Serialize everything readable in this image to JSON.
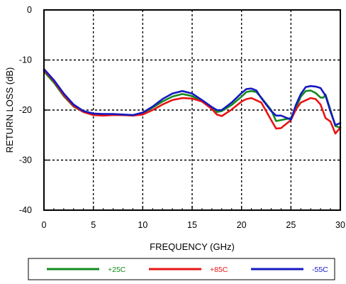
{
  "chart_data": {
    "type": "line",
    "title": "",
    "xlabel": "FREQUENCY (GHz)",
    "ylabel": "RETURN LOSS (dB)",
    "xlim": [
      0,
      30
    ],
    "ylim": [
      -40,
      0
    ],
    "xticks": [
      "0",
      "5",
      "10",
      "15",
      "20",
      "25",
      "30"
    ],
    "yticks": [
      "0",
      "-10",
      "-20",
      "-30",
      "-40"
    ],
    "grid": true,
    "legend_position": "bottom",
    "series": [
      {
        "name": "+25C",
        "color": "#138a1e",
        "x": [
          0,
          1,
          2,
          3,
          4,
          5,
          6,
          7,
          8,
          9,
          10,
          11,
          12,
          13,
          14,
          15,
          16,
          17,
          17.5,
          18,
          19,
          20,
          20.5,
          21,
          21.5,
          22,
          23,
          23.5,
          24,
          25,
          25.5,
          26,
          26.5,
          27,
          27.5,
          28,
          28.3,
          28.5,
          29,
          29.5,
          30
        ],
        "y": [
          -12.3,
          -14.5,
          -17.2,
          -19.3,
          -20.4,
          -20.9,
          -21.0,
          -20.9,
          -21.0,
          -21.0,
          -20.6,
          -19.5,
          -18.3,
          -17.3,
          -16.8,
          -17.2,
          -18.3,
          -19.7,
          -20.4,
          -20.2,
          -19.0,
          -17.3,
          -16.4,
          -16.2,
          -16.4,
          -17.5,
          -20.0,
          -22.2,
          -22.0,
          -21.6,
          -19.6,
          -17.3,
          -16.2,
          -16.1,
          -16.6,
          -17.5,
          -17.5,
          -16.9,
          -20.0,
          -23.2,
          -23.5
        ]
      },
      {
        "name": "+85C",
        "color": "#e81414",
        "x": [
          0,
          1,
          2,
          3,
          4,
          5,
          6,
          7,
          8,
          9,
          10,
          11,
          12,
          13,
          14,
          15,
          16,
          17,
          17.5,
          18,
          19,
          20,
          20.5,
          21,
          22,
          23,
          23.5,
          24,
          25,
          25.5,
          26,
          27,
          27.5,
          28,
          28.5,
          29,
          29.5,
          30
        ],
        "y": [
          -12.0,
          -14.2,
          -17.0,
          -19.2,
          -20.4,
          -21.0,
          -21.1,
          -21.0,
          -21.0,
          -21.1,
          -20.9,
          -20.0,
          -18.9,
          -18.0,
          -17.6,
          -17.7,
          -18.3,
          -19.8,
          -20.9,
          -21.2,
          -19.9,
          -18.3,
          -17.8,
          -17.6,
          -18.5,
          -22.0,
          -23.7,
          -23.6,
          -22.0,
          -19.9,
          -18.5,
          -17.6,
          -17.8,
          -18.9,
          -21.6,
          -22.3,
          -24.7,
          -23.5
        ]
      },
      {
        "name": "-55C",
        "color": "#1518c0",
        "x": [
          0,
          1,
          2,
          3,
          4,
          5,
          6,
          7,
          8,
          9,
          10,
          11,
          12,
          13,
          14,
          15,
          16,
          17,
          17.5,
          18,
          19,
          20,
          20.5,
          21,
          21.5,
          22,
          23,
          23.5,
          24,
          25,
          25.5,
          26,
          26.5,
          27,
          27.5,
          28,
          28.5,
          29,
          29.5,
          30
        ],
        "y": [
          -11.8,
          -14.0,
          -16.7,
          -18.9,
          -20.2,
          -20.7,
          -20.8,
          -20.8,
          -20.9,
          -21.0,
          -20.5,
          -19.3,
          -17.8,
          -16.7,
          -16.2,
          -16.7,
          -18.0,
          -19.4,
          -20.0,
          -20.0,
          -18.5,
          -16.6,
          -15.8,
          -15.7,
          -16.1,
          -17.6,
          -20.2,
          -21.1,
          -21.1,
          -21.9,
          -19.0,
          -16.8,
          -15.4,
          -15.2,
          -15.3,
          -15.6,
          -17.1,
          -20.3,
          -23.0,
          -22.6
        ]
      }
    ]
  }
}
